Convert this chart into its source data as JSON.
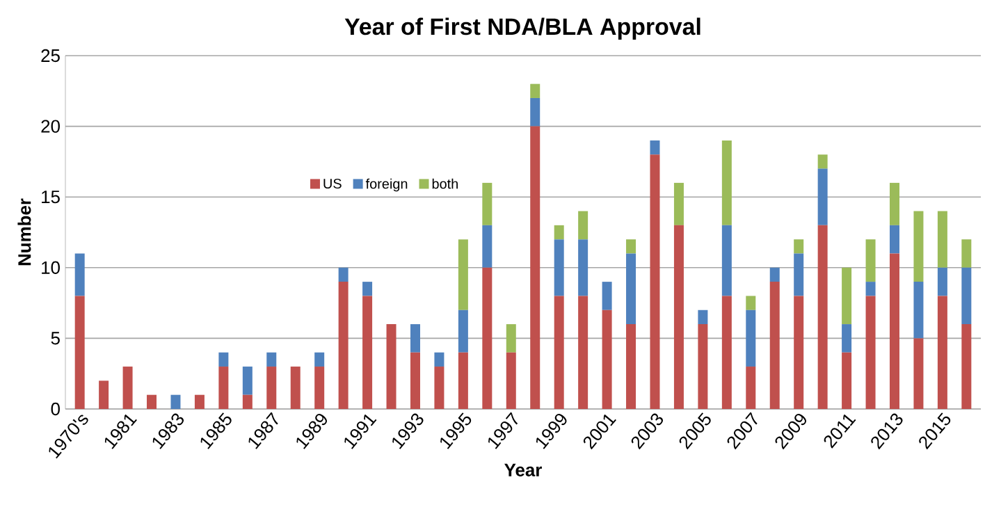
{
  "chart_data": {
    "type": "bar",
    "stacked": true,
    "title": "Year of First NDA/BLA Approval",
    "xlabel": "Year",
    "ylabel": "Number",
    "categories": [
      "1970's",
      null,
      "1981",
      null,
      "1983",
      null,
      "1985",
      null,
      "1987",
      null,
      "1989",
      null,
      "1991",
      null,
      "1993",
      null,
      "1995",
      null,
      "1997",
      null,
      "1999",
      null,
      "2001",
      null,
      "2003",
      null,
      "2005",
      null,
      "2007",
      null,
      "2009",
      null,
      "2011",
      null,
      "2013",
      null,
      "2015",
      null
    ],
    "series": [
      {
        "name": "US",
        "color": "#c0504d",
        "values": [
          8,
          2,
          3,
          1,
          0,
          1,
          3,
          1,
          3,
          3,
          3,
          9,
          8,
          6,
          4,
          3,
          4,
          10,
          4,
          20,
          8,
          8,
          7,
          6,
          18,
          13,
          6,
          8,
          3,
          9,
          8,
          13,
          4,
          8,
          11,
          5,
          8,
          6
        ]
      },
      {
        "name": "foreign",
        "color": "#4f81bd",
        "values": [
          3,
          0,
          0,
          0,
          1,
          0,
          1,
          2,
          1,
          0,
          1,
          1,
          1,
          0,
          2,
          1,
          3,
          3,
          0,
          2,
          4,
          4,
          2,
          5,
          1,
          0,
          1,
          5,
          4,
          1,
          3,
          4,
          2,
          1,
          2,
          4,
          2,
          4
        ]
      },
      {
        "name": "both",
        "color": "#9bbb59",
        "values": [
          0,
          0,
          0,
          0,
          0,
          0,
          0,
          0,
          0,
          0,
          0,
          0,
          0,
          0,
          0,
          0,
          5,
          3,
          2,
          1,
          1,
          2,
          0,
          1,
          0,
          3,
          0,
          6,
          1,
          0,
          1,
          1,
          4,
          3,
          3,
          5,
          4,
          2
        ]
      }
    ],
    "ylim": [
      0,
      25
    ],
    "yticks": [
      0,
      5,
      10,
      15,
      20,
      25
    ],
    "grid": "y",
    "legend": "top"
  }
}
